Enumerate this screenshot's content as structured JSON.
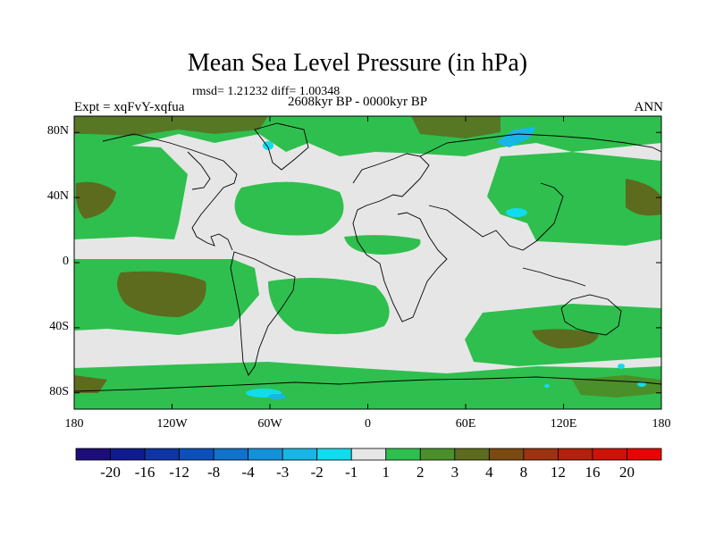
{
  "title": "Mean Sea Level Pressure (in hPa)",
  "stats": "rmsd= 1.21232  diff= 1.00348",
  "period": "2608kyr BP - 0000kyr BP",
  "experiment": "Expt = xqFvY-xqfua",
  "season": "ANN",
  "axes": {
    "lat_labels": [
      "80N",
      "40N",
      "0",
      "40S",
      "80S"
    ],
    "lat_values": [
      80,
      40,
      0,
      -40,
      -80
    ],
    "lon_labels": [
      "180",
      "120W",
      "60W",
      "0",
      "60E",
      "120E",
      "180"
    ],
    "lon_values": [
      -180,
      -120,
      -60,
      0,
      60,
      120,
      180
    ],
    "lat_range": [
      -90,
      90
    ],
    "lon_range": [
      -180,
      180
    ]
  },
  "colorbar": {
    "labels": [
      "-20",
      "-16",
      "-12",
      "-8",
      "-4",
      "-3",
      "-2",
      "-1",
      "1",
      "2",
      "3",
      "4",
      "8",
      "12",
      "16",
      "20"
    ],
    "colors": [
      "#1c0d78",
      "#0f1b8e",
      "#0f34a4",
      "#0d4fb9",
      "#1271c9",
      "#1592d7",
      "#17b6e4",
      "#11dcee",
      "#e6e6e6",
      "#2fbf4e",
      "#4b8f2a",
      "#5d6b1e",
      "#7a4a12",
      "#9b3210",
      "#b3200d",
      "#cf1208",
      "#e80404"
    ]
  },
  "colors": {
    "neutral": "#e6e6e6",
    "green": "#2fbf4e",
    "olive": "#5d6b1e",
    "dark_green": "#4b8f2a",
    "cyan": "#11dcee",
    "coast": "#000000"
  }
}
